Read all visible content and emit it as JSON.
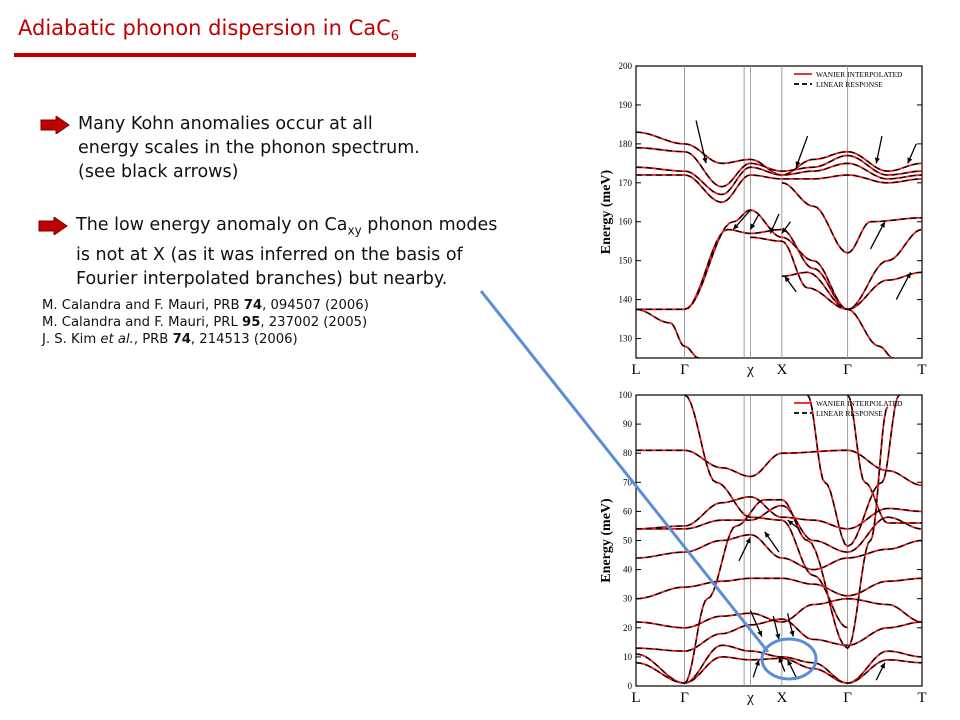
{
  "header": {
    "title_main": "Adiabatic phonon dispersion in CaC",
    "title_sub": "6"
  },
  "bullets": {
    "b1": {
      "lines": [
        "Many Kohn anomalies occur at all",
        "energy scales in the phonon spectrum.",
        "(see black arrows)"
      ]
    },
    "b2": {
      "line1_pre": "The low energy anomaly on Ca",
      "line1_sub": "xy",
      "line1_post": " phonon modes",
      "line2": "is not at X (as it was inferred on the basis of",
      "line3": "Fourier interpolated branches) but nearby."
    }
  },
  "references": [
    {
      "pre": "M. Calandra and F. Mauri, PRB ",
      "bold": "74",
      "post": ", 094507 (2006)",
      "italic": ""
    },
    {
      "pre": "M. Calandra and F. Mauri, PRL ",
      "bold": "95",
      "post": ", 237002 (2005)",
      "italic": ""
    },
    {
      "pre": "J. S. Kim ",
      "italic": "et al.",
      "mid": ", PRB ",
      "bold": "74",
      "post": ", 214513 (2006)"
    }
  ],
  "colors": {
    "title": "#c00000",
    "bullet_arrow": "#c00000",
    "wannier": "#e31a1c",
    "linear": "#000000",
    "pointer_line": "#5b8ed6"
  },
  "chart_data": [
    {
      "type": "line",
      "title": "",
      "ylabel": "Energy (meV)",
      "xlabel": "",
      "ylim": [
        125,
        200
      ],
      "yticks": [
        "130",
        "140",
        "150",
        "160",
        "170",
        "180",
        "190",
        "200"
      ],
      "xticks": [
        "L",
        "Γ",
        "χ",
        "X",
        "Γ",
        "T"
      ],
      "legend": {
        "position": "top-right",
        "entries": [
          "WANIER INTERPOLATED",
          "LINEAR RESPONSE"
        ]
      },
      "series": [
        {
          "name": "WANIER INTERPOLATED",
          "style": "solid",
          "color": "#e31a1c"
        },
        {
          "name": "LINEAR RESPONSE",
          "style": "dashed",
          "color": "#000000"
        }
      ]
    },
    {
      "type": "line",
      "title": "",
      "ylabel": "Energy (meV)",
      "xlabel": "",
      "ylim": [
        0,
        100
      ],
      "yticks": [
        "0",
        "10",
        "20",
        "30",
        "40",
        "50",
        "60",
        "70",
        "80",
        "90",
        "100"
      ],
      "xticks": [
        "L",
        "Γ",
        "χ",
        "X",
        "Γ",
        "T"
      ],
      "legend": {
        "position": "top-right",
        "entries": [
          "WANIER INTERPOLATED",
          "LINEAR RESPONSE"
        ]
      },
      "series": [
        {
          "name": "WANIER INTERPOLATED",
          "style": "solid",
          "color": "#e31a1c"
        },
        {
          "name": "LINEAR RESPONSE",
          "style": "dashed",
          "color": "#000000"
        }
      ]
    }
  ]
}
